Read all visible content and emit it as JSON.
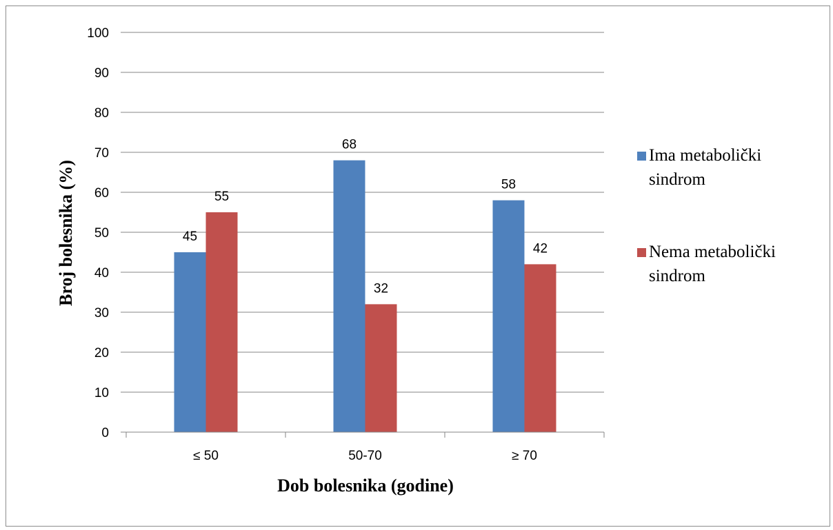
{
  "chart_data": {
    "type": "bar",
    "title": "",
    "xlabel": "Dob bolesnika (godine)",
    "ylabel": "Broj bolesnika (%)",
    "ylim": [
      0,
      100
    ],
    "yticks": [
      0,
      10,
      20,
      30,
      40,
      50,
      60,
      70,
      80,
      90,
      100
    ],
    "grid": true,
    "legend_position": "right",
    "categories": [
      "≤ 50",
      "50-70",
      "≥ 70"
    ],
    "series": [
      {
        "name": "Ima metabolički sindrom",
        "legend_lines": [
          "Ima metabolički",
          "sindrom"
        ],
        "color": "#4f81bd",
        "values": [
          45,
          68,
          58
        ]
      },
      {
        "name": "Nema metabolički sindrom",
        "legend_lines": [
          "Nema metabolički",
          "sindrom"
        ],
        "color": "#c0504d",
        "values": [
          55,
          32,
          42
        ]
      }
    ]
  }
}
